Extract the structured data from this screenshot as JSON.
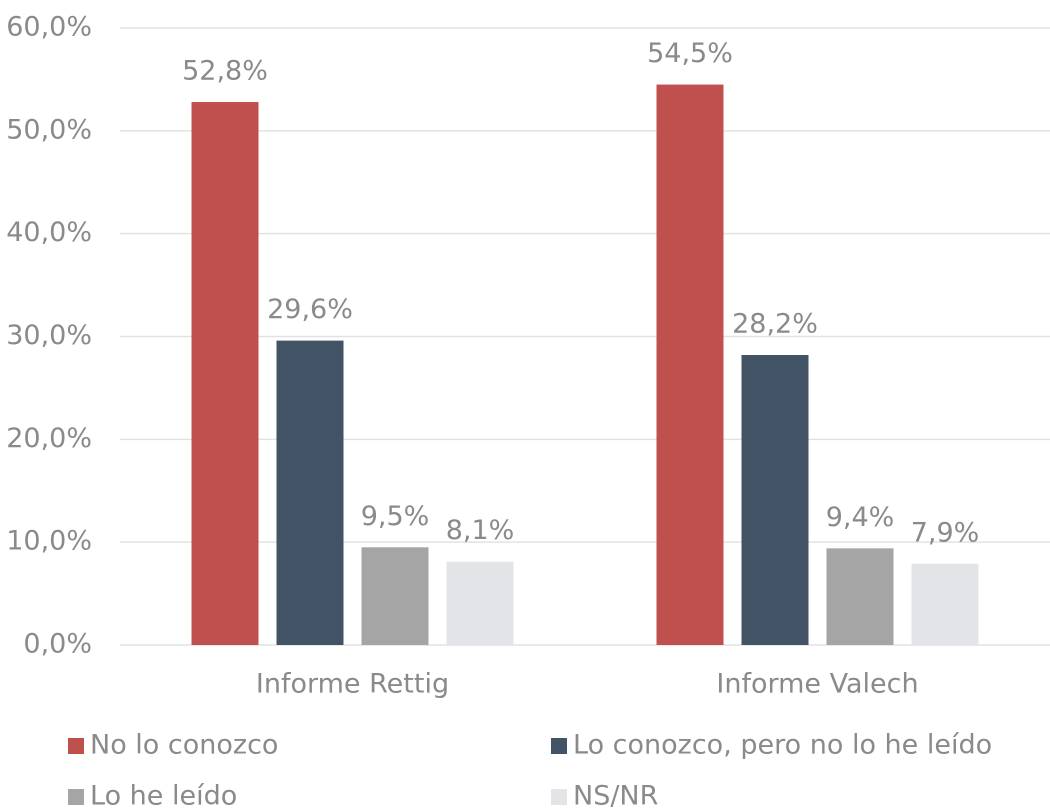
{
  "chart_data": {
    "type": "bar",
    "categories": [
      "Informe Rettig",
      "Informe Valech"
    ],
    "series": [
      {
        "name": "No lo conozco",
        "color": "#c0504d",
        "values": [
          52.8,
          54.5
        ],
        "value_labels": [
          "52,8%",
          "54,5%"
        ]
      },
      {
        "name": "Lo conozco, pero no lo he leído",
        "color": "#415364",
        "values": [
          29.6,
          28.2
        ],
        "value_labels": [
          "29,6%",
          "28,2%"
        ]
      },
      {
        "name": "Lo he leído",
        "color": "#a5a5a5",
        "values": [
          9.5,
          9.4
        ],
        "value_labels": [
          "9,5%",
          "9,4%"
        ]
      },
      {
        "name": "NS/NR",
        "color": "#e3e4e8",
        "values": [
          8.1,
          7.9
        ],
        "value_labels": [
          "8,1%",
          "7,9%"
        ]
      }
    ],
    "ylim": [
      0,
      60
    ],
    "yticks": [
      {
        "value": 0,
        "label": "0,0%"
      },
      {
        "value": 10,
        "label": "10,0%"
      },
      {
        "value": 20,
        "label": "20,0%"
      },
      {
        "value": 30,
        "label": "30,0%"
      },
      {
        "value": 40,
        "label": "40,0%"
      },
      {
        "value": 50,
        "label": "50,0%"
      },
      {
        "value": 60,
        "label": "60,0%"
      }
    ],
    "grid": true
  }
}
